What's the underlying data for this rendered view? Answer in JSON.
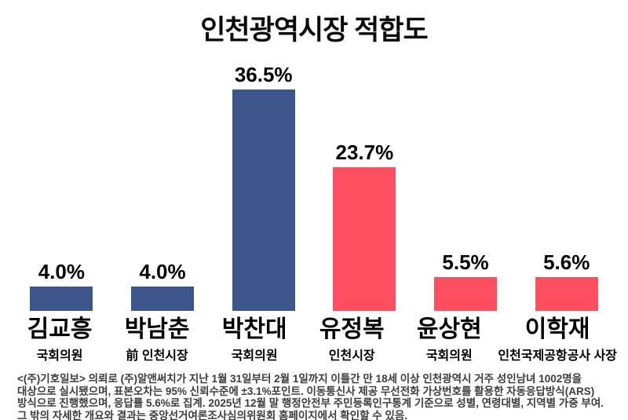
{
  "title": "인천광역시장 적합도",
  "chart_data": {
    "type": "bar",
    "title": "인천광역시장 적합도",
    "categories": [
      "김교흥",
      "박남춘",
      "박찬대",
      "유정복",
      "윤상현",
      "이학재"
    ],
    "sub_labels": [
      "국회의원",
      "前 인천시장",
      "국회의원",
      "인천시장",
      "국회의원",
      "인천국제공항공사 사장"
    ],
    "values": [
      4.0,
      4.0,
      36.5,
      23.7,
      5.5,
      5.6
    ],
    "value_labels": [
      "4.0%",
      "4.0%",
      "36.5%",
      "23.7%",
      "5.5%",
      "5.6%"
    ],
    "colors": [
      "#3C568C",
      "#3C568C",
      "#3C568C",
      "#FD4F5F",
      "#FD4F5F",
      "#FD4F5F"
    ],
    "series_colors": {
      "blue": "#3C568C",
      "red": "#FD4F5F"
    },
    "xlabel": "",
    "ylabel": "",
    "ylim": [
      0,
      40
    ],
    "grid": false,
    "legend": "none",
    "value_labels_position": "above-bars"
  },
  "footer": "<(주)기호일보> 의뢰로 (주)알앤써치가 지난 1월 31일부터 2월 1일까지 이틀간 만 18세 이상 인천광역시 거주 성인남녀 1002명을 대상으로 실시됐으며, 표본오차는 95% 신뢰수준에 ±3.1%포인트. 이동통신사 제공 무선전화 가상번호를 활용한 자동응답방식(ARS) 방식으로 진행했으며, 응답률 5.6%로 집계. 2025년 12월 말 행정안전부 주민등록인구통계 기준으로 성별, 연령대별, 지역별 가중 부여. 그 밖의 자세한 개요와 결과는 중앙선거여론조사심의위원회 홈페이지에서 확인할 수 있음."
}
